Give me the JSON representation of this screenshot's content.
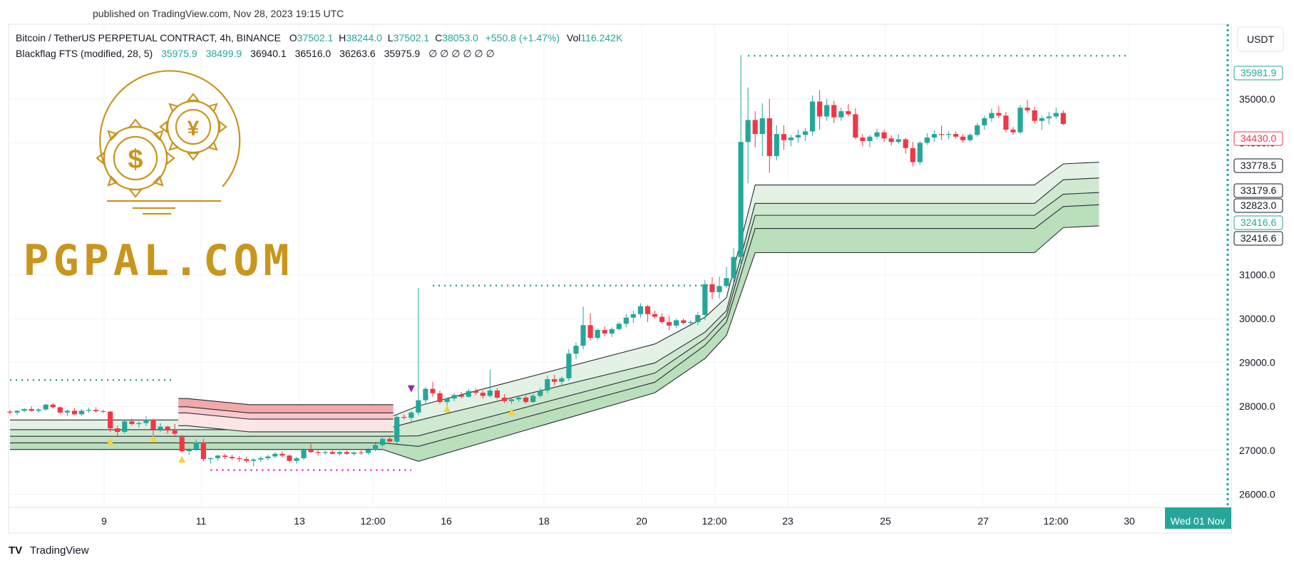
{
  "header": {
    "published": "published on TradingView.com, Nov 28, 2023 19:15 UTC"
  },
  "legend": {
    "symbol": "Bitcoin / TetherUS PERPETUAL CONTRACT, 4h, BINANCE",
    "o_label": "O",
    "o_value": "37502.1",
    "h_label": "H",
    "h_value": "38244.0",
    "l_label": "L",
    "l_value": "37502.1",
    "c_label": "C",
    "c_value": "38053.0",
    "change": "+550.8 (+1.47%)",
    "vol_label": "Vol",
    "vol_value": "116.242K",
    "indicator": "Blackflag FTS (modified, 28, 5)",
    "ind_v1": "35975.9",
    "ind_v2": "38499.9",
    "ind_v3": "36940.1",
    "ind_v4": "36516.0",
    "ind_v5": "36263.6",
    "ind_v6": "35975.9",
    "ind_zeros": "∅ ∅ ∅ ∅ ∅ ∅"
  },
  "currency_button": "USDT",
  "watermark": {
    "text": "PGPAL.COM"
  },
  "footer": {
    "brand": "TradingView"
  },
  "colors": {
    "up": "#26a69a",
    "down": "#f23645",
    "gold": "#c8961e",
    "band_green": "#b9dfbb",
    "band_red": "#f5b5b5"
  },
  "chart_data": {
    "type": "candlestick",
    "title": "Bitcoin / TetherUS PERPETUAL CONTRACT, 4h, BINANCE",
    "x_ticks": [
      "9",
      "11",
      "13",
      "12:00",
      "16",
      "18",
      "20",
      "12:00",
      "23",
      "25",
      "27",
      "12:00",
      "30"
    ],
    "x_current": "Wed 01 Nov",
    "y_ticks": [
      26000,
      27000,
      28000,
      29000,
      30000,
      31000,
      34000,
      35000
    ],
    "y_ticks_text": [
      "26000.0",
      "27000.0",
      "28000.0",
      "29000.0",
      "30000.0",
      "31000.0",
      "34000.0",
      "35000.0"
    ],
    "ylim": [
      25700,
      36700
    ],
    "price_labels": [
      {
        "value": "35981.9",
        "kind": "green-outline"
      },
      {
        "value": "34430.0",
        "kind": "red"
      },
      {
        "value": "33778.5",
        "kind": "dark"
      },
      {
        "value": "33179.6",
        "kind": "dark"
      },
      {
        "value": "32823.0",
        "kind": "dark"
      },
      {
        "value": "32416.6",
        "kind": "green-outline"
      },
      {
        "value": "32416.6",
        "kind": "dark"
      }
    ],
    "candles": [
      [
        27880,
        27920,
        27820,
        27860
      ],
      [
        27860,
        27910,
        27800,
        27900
      ],
      [
        27900,
        27960,
        27860,
        27940
      ],
      [
        27940,
        28000,
        27880,
        27900
      ],
      [
        27900,
        27960,
        27850,
        27930
      ],
      [
        27930,
        28060,
        27900,
        28040
      ],
      [
        28040,
        28080,
        27950,
        27980
      ],
      [
        27980,
        28000,
        27820,
        27860
      ],
      [
        27860,
        27930,
        27780,
        27900
      ],
      [
        27900,
        27960,
        27800,
        27820
      ],
      [
        27820,
        27940,
        27790,
        27900
      ],
      [
        27900,
        27970,
        27850,
        27920
      ],
      [
        27920,
        27980,
        27860,
        27890
      ],
      [
        27890,
        27920,
        27850,
        27880
      ],
      [
        27880,
        27900,
        27420,
        27500
      ],
      [
        27500,
        27560,
        27320,
        27420
      ],
      [
        27420,
        27700,
        27380,
        27660
      ],
      [
        27660,
        27720,
        27560,
        27600
      ],
      [
        27600,
        27660,
        27520,
        27620
      ],
      [
        27620,
        27780,
        27560,
        27700
      ],
      [
        27700,
        27720,
        27320,
        27480
      ],
      [
        27480,
        27620,
        27420,
        27540
      ],
      [
        27540,
        27560,
        27380,
        27450
      ],
      [
        27450,
        27600,
        27300,
        27380
      ],
      [
        27300,
        27350,
        26950,
        26980
      ],
      [
        26980,
        27050,
        26900,
        27020
      ],
      [
        27020,
        27250,
        26980,
        27180
      ],
      [
        27180,
        27260,
        26750,
        26800
      ],
      [
        26800,
        26840,
        26700,
        26820
      ],
      [
        26820,
        26900,
        26760,
        26880
      ],
      [
        26880,
        26920,
        26800,
        26850
      ],
      [
        26850,
        26900,
        26780,
        26820
      ],
      [
        26820,
        26870,
        26740,
        26800
      ],
      [
        26800,
        26860,
        26720,
        26760
      ],
      [
        26760,
        26820,
        26640,
        26790
      ],
      [
        26790,
        26860,
        26740,
        26820
      ],
      [
        26820,
        26900,
        26770,
        26860
      ],
      [
        26860,
        26960,
        26820,
        26920
      ],
      [
        26920,
        26980,
        26840,
        26880
      ],
      [
        26880,
        26900,
        26720,
        26760
      ],
      [
        26760,
        26850,
        26700,
        26820
      ],
      [
        26820,
        27050,
        26780,
        27020
      ],
      [
        27020,
        27150,
        26940,
        26960
      ],
      [
        26960,
        27000,
        26880,
        26940
      ],
      [
        26940,
        26990,
        26900,
        26960
      ],
      [
        26960,
        27010,
        26910,
        26920
      ],
      [
        26920,
        26990,
        26880,
        26960
      ],
      [
        26960,
        27000,
        26900,
        26920
      ],
      [
        26920,
        26970,
        26880,
        26950
      ],
      [
        26950,
        27000,
        26900,
        26940
      ],
      [
        26940,
        27050,
        26900,
        27010
      ],
      [
        27010,
        27160,
        26980,
        27120
      ],
      [
        27120,
        27300,
        27080,
        27260
      ],
      [
        27260,
        27300,
        27180,
        27200
      ],
      [
        27200,
        27820,
        27150,
        27760
      ],
      [
        27760,
        27820,
        27700,
        27740
      ],
      [
        27740,
        27900,
        27640,
        27860
      ],
      [
        27860,
        30700,
        27800,
        28140
      ],
      [
        28140,
        28450,
        28050,
        28400
      ],
      [
        28400,
        28560,
        28220,
        28300
      ],
      [
        28300,
        28360,
        28060,
        28100
      ],
      [
        28100,
        28200,
        28000,
        28180
      ],
      [
        28180,
        28300,
        28120,
        28260
      ],
      [
        28260,
        28330,
        28180,
        28220
      ],
      [
        28220,
        28400,
        28200,
        28350
      ],
      [
        28350,
        28420,
        28250,
        28310
      ],
      [
        28310,
        28360,
        28180,
        28240
      ],
      [
        28240,
        28840,
        28200,
        28360
      ],
      [
        28360,
        28420,
        28160,
        28200
      ],
      [
        28200,
        28280,
        28080,
        28120
      ],
      [
        28120,
        28200,
        28060,
        28160
      ],
      [
        28160,
        28240,
        28100,
        28200
      ],
      [
        28200,
        28240,
        28060,
        28100
      ],
      [
        28100,
        28280,
        28080,
        28240
      ],
      [
        28240,
        28420,
        28200,
        28360
      ],
      [
        28360,
        28700,
        28300,
        28620
      ],
      [
        28620,
        28720,
        28480,
        28560
      ],
      [
        28560,
        28680,
        28460,
        28640
      ],
      [
        28640,
        29300,
        28580,
        29200
      ],
      [
        29200,
        29460,
        29080,
        29380
      ],
      [
        29380,
        30270,
        29300,
        29850
      ],
      [
        29850,
        30120,
        29500,
        29560
      ],
      [
        29560,
        29780,
        29500,
        29740
      ],
      [
        29740,
        29820,
        29600,
        29660
      ],
      [
        29660,
        29800,
        29580,
        29760
      ],
      [
        29760,
        29920,
        29720,
        29880
      ],
      [
        29880,
        30100,
        29800,
        30020
      ],
      [
        30020,
        30180,
        29900,
        30100
      ],
      [
        30100,
        30350,
        30020,
        30280
      ],
      [
        30280,
        30310,
        29920,
        30100
      ],
      [
        30100,
        30180,
        30000,
        30040
      ],
      [
        30040,
        30120,
        29880,
        29920
      ],
      [
        29920,
        30060,
        29740,
        29840
      ],
      [
        29840,
        30000,
        29780,
        29960
      ],
      [
        29960,
        30000,
        29860,
        29900
      ],
      [
        29900,
        29960,
        29860,
        29920
      ],
      [
        29920,
        30150,
        29850,
        30080
      ],
      [
        30080,
        30880,
        29960,
        30780
      ],
      [
        30780,
        30940,
        30440,
        30600
      ],
      [
        30600,
        30960,
        30460,
        30740
      ],
      [
        30740,
        31180,
        30700,
        30920
      ],
      [
        30920,
        31600,
        30800,
        31400
      ],
      [
        31400,
        36000,
        31200,
        34020
      ],
      [
        34020,
        35260,
        33080,
        34520
      ],
      [
        34520,
        34720,
        33900,
        34200
      ],
      [
        34200,
        34900,
        33700,
        34560
      ],
      [
        34560,
        35000,
        33320,
        33700
      ],
      [
        33700,
        34400,
        33600,
        34200
      ],
      [
        34200,
        34400,
        33840,
        34060
      ],
      [
        34060,
        34180,
        33920,
        34120
      ],
      [
        34120,
        34300,
        34000,
        34180
      ],
      [
        34180,
        34330,
        34040,
        34260
      ],
      [
        34260,
        35080,
        34160,
        34940
      ],
      [
        34940,
        35200,
        34300,
        34600
      ],
      [
        34600,
        35000,
        34500,
        34860
      ],
      [
        34860,
        34960,
        34450,
        34580
      ],
      [
        34580,
        34800,
        34500,
        34720
      ],
      [
        34720,
        34880,
        34600,
        34650
      ],
      [
        34650,
        34790,
        34080,
        34120
      ],
      [
        34120,
        34200,
        33920,
        34040
      ],
      [
        34040,
        34180,
        33900,
        34140
      ],
      [
        34140,
        34320,
        34080,
        34240
      ],
      [
        34240,
        34300,
        34020,
        34100
      ],
      [
        34100,
        34180,
        33940,
        34020
      ],
      [
        34020,
        34200,
        33980,
        34080
      ],
      [
        34080,
        34120,
        33760,
        33880
      ],
      [
        33880,
        34020,
        33460,
        33560
      ],
      [
        33560,
        34040,
        33500,
        34000
      ],
      [
        34000,
        34220,
        33950,
        34120
      ],
      [
        34120,
        34280,
        34020,
        34200
      ],
      [
        34200,
        34390,
        34060,
        34180
      ],
      [
        34180,
        34260,
        34080,
        34200
      ],
      [
        34200,
        34260,
        34100,
        34140
      ],
      [
        34140,
        34200,
        34000,
        34060
      ],
      [
        34060,
        34220,
        34020,
        34180
      ],
      [
        34180,
        34450,
        34140,
        34400
      ],
      [
        34400,
        34620,
        34300,
        34560
      ],
      [
        34560,
        34780,
        34480,
        34680
      ],
      [
        34680,
        34840,
        34560,
        34620
      ],
      [
        34620,
        34700,
        34240,
        34300
      ],
      [
        34300,
        34360,
        34180,
        34240
      ],
      [
        34240,
        34860,
        34200,
        34800
      ],
      [
        34800,
        34980,
        34680,
        34740
      ],
      [
        34740,
        34820,
        34440,
        34500
      ],
      [
        34500,
        34620,
        34300,
        34560
      ],
      [
        34560,
        34700,
        34420,
        34600
      ],
      [
        34600,
        34800,
        34540,
        34680
      ],
      [
        34680,
        34740,
        34400,
        34430
      ]
    ],
    "bands": {
      "b1": [
        [
          0,
          27690
        ],
        [
          50,
          27690
        ],
        [
          52,
          27690
        ],
        [
          57,
          28010
        ],
        [
          90,
          29420
        ],
        [
          97,
          30030
        ],
        [
          100,
          30480
        ],
        [
          104,
          33040
        ],
        [
          143,
          33040
        ],
        [
          147,
          33520
        ],
        [
          152,
          33560
        ]
      ],
      "b2": [
        [
          0,
          27470
        ],
        [
          50,
          27470
        ],
        [
          52,
          27470
        ],
        [
          57,
          27680
        ],
        [
          90,
          28990
        ],
        [
          97,
          29690
        ],
        [
          100,
          30180
        ],
        [
          104,
          32620
        ],
        [
          143,
          32620
        ],
        [
          147,
          33160
        ],
        [
          152,
          33200
        ]
      ],
      "b3": [
        [
          0,
          27320
        ],
        [
          50,
          27320
        ],
        [
          52,
          27320
        ],
        [
          57,
          27330
        ],
        [
          90,
          28760
        ],
        [
          97,
          29540
        ],
        [
          100,
          30060
        ],
        [
          104,
          32350
        ],
        [
          143,
          32350
        ],
        [
          147,
          32830
        ],
        [
          152,
          32870
        ]
      ],
      "b4": [
        [
          0,
          27170
        ],
        [
          50,
          27170
        ],
        [
          52,
          27170
        ],
        [
          57,
          27090
        ],
        [
          90,
          28550
        ],
        [
          97,
          29390
        ],
        [
          100,
          29920
        ],
        [
          104,
          32050
        ],
        [
          143,
          32050
        ],
        [
          147,
          32550
        ],
        [
          152,
          32590
        ]
      ],
      "b5": [
        [
          0,
          27020
        ],
        [
          50,
          27020
        ],
        [
          52,
          27020
        ],
        [
          57,
          26750
        ],
        [
          90,
          28310
        ],
        [
          97,
          29090
        ],
        [
          100,
          29620
        ],
        [
          104,
          31500
        ],
        [
          143,
          31500
        ],
        [
          147,
          32070
        ],
        [
          152,
          32110
        ]
      ]
    },
    "dotted_levels": [
      {
        "value": 28600,
        "from": 0,
        "to": 23,
        "color": "#26a69a"
      },
      {
        "value": 26550,
        "from": 28,
        "to": 56,
        "color": "#d61fd6"
      },
      {
        "value": 30750,
        "from": 59,
        "to": 98,
        "color": "#26a69a"
      },
      {
        "value": 35981.9,
        "from": 103,
        "to": 156,
        "color": "#26a69a"
      }
    ],
    "markers": [
      {
        "index": 14,
        "value": 27200,
        "shape": "up",
        "color": "#f5d33a"
      },
      {
        "index": 20,
        "value": 27260,
        "shape": "up",
        "color": "#f5d33a"
      },
      {
        "index": 24,
        "value": 26800,
        "shape": "up",
        "color": "#f5d33a"
      },
      {
        "index": 56,
        "value": 28400,
        "shape": "down",
        "color": "#9c27b0"
      },
      {
        "index": 61,
        "value": 27950,
        "shape": "up",
        "color": "#f5d33a"
      },
      {
        "index": 70,
        "value": 27880,
        "shape": "up",
        "color": "#f5d33a"
      }
    ]
  }
}
